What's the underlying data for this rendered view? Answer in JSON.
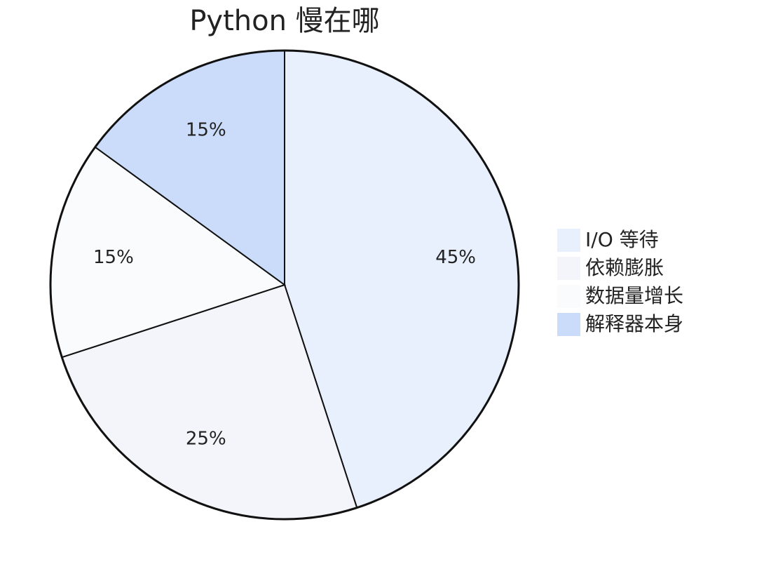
{
  "chart_data": {
    "type": "pie",
    "title": "Python 慢在哪",
    "categories": [
      "I/O 等待",
      "依赖膨胀",
      "数据量增长",
      "解释器本身"
    ],
    "values": [
      45,
      25,
      15,
      15
    ],
    "value_labels": [
      "45%",
      "25%",
      "15%",
      "15%"
    ],
    "colors": [
      "#e8f0fd",
      "#f3f5fa",
      "#fafbfd",
      "#cadcfa"
    ]
  }
}
